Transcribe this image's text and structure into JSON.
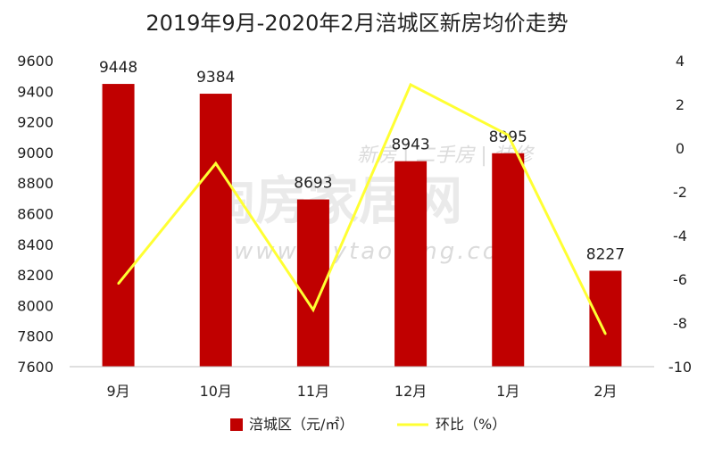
{
  "chart_data": {
    "type": "bar",
    "title": "2019年9月-2020年2月涪城区新房均价走势",
    "categories": [
      "9月",
      "10月",
      "11月",
      "12月",
      "1月",
      "2月"
    ],
    "series": [
      {
        "name": "涪城区（元/㎡）",
        "type": "bar",
        "axis": "left",
        "color": "#C00000",
        "values": [
          9448,
          9384,
          8693,
          8943,
          8995,
          8227
        ]
      },
      {
        "name": "环比（%）",
        "type": "line",
        "axis": "right",
        "color": "#FFFF33",
        "values": [
          -6.2,
          -0.7,
          -7.4,
          2.9,
          0.6,
          -8.5
        ]
      }
    ],
    "y_left": {
      "range": [
        7600,
        9600
      ],
      "ticks": [
        "7600",
        "7800",
        "8000",
        "8200",
        "8400",
        "8600",
        "8800",
        "9000",
        "9200",
        "9400",
        "9600"
      ]
    },
    "y_right": {
      "range": [
        -10,
        4
      ],
      "ticks": [
        "-10",
        "-8",
        "-6",
        "-4",
        "-2",
        "0",
        "2",
        "4"
      ]
    },
    "grid": false,
    "legend_position": "bottom"
  },
  "watermark": {
    "brand": "淘房家居网",
    "tagline": "新房 | 二手房 | 装修",
    "url": "www.mytaofang.com"
  }
}
